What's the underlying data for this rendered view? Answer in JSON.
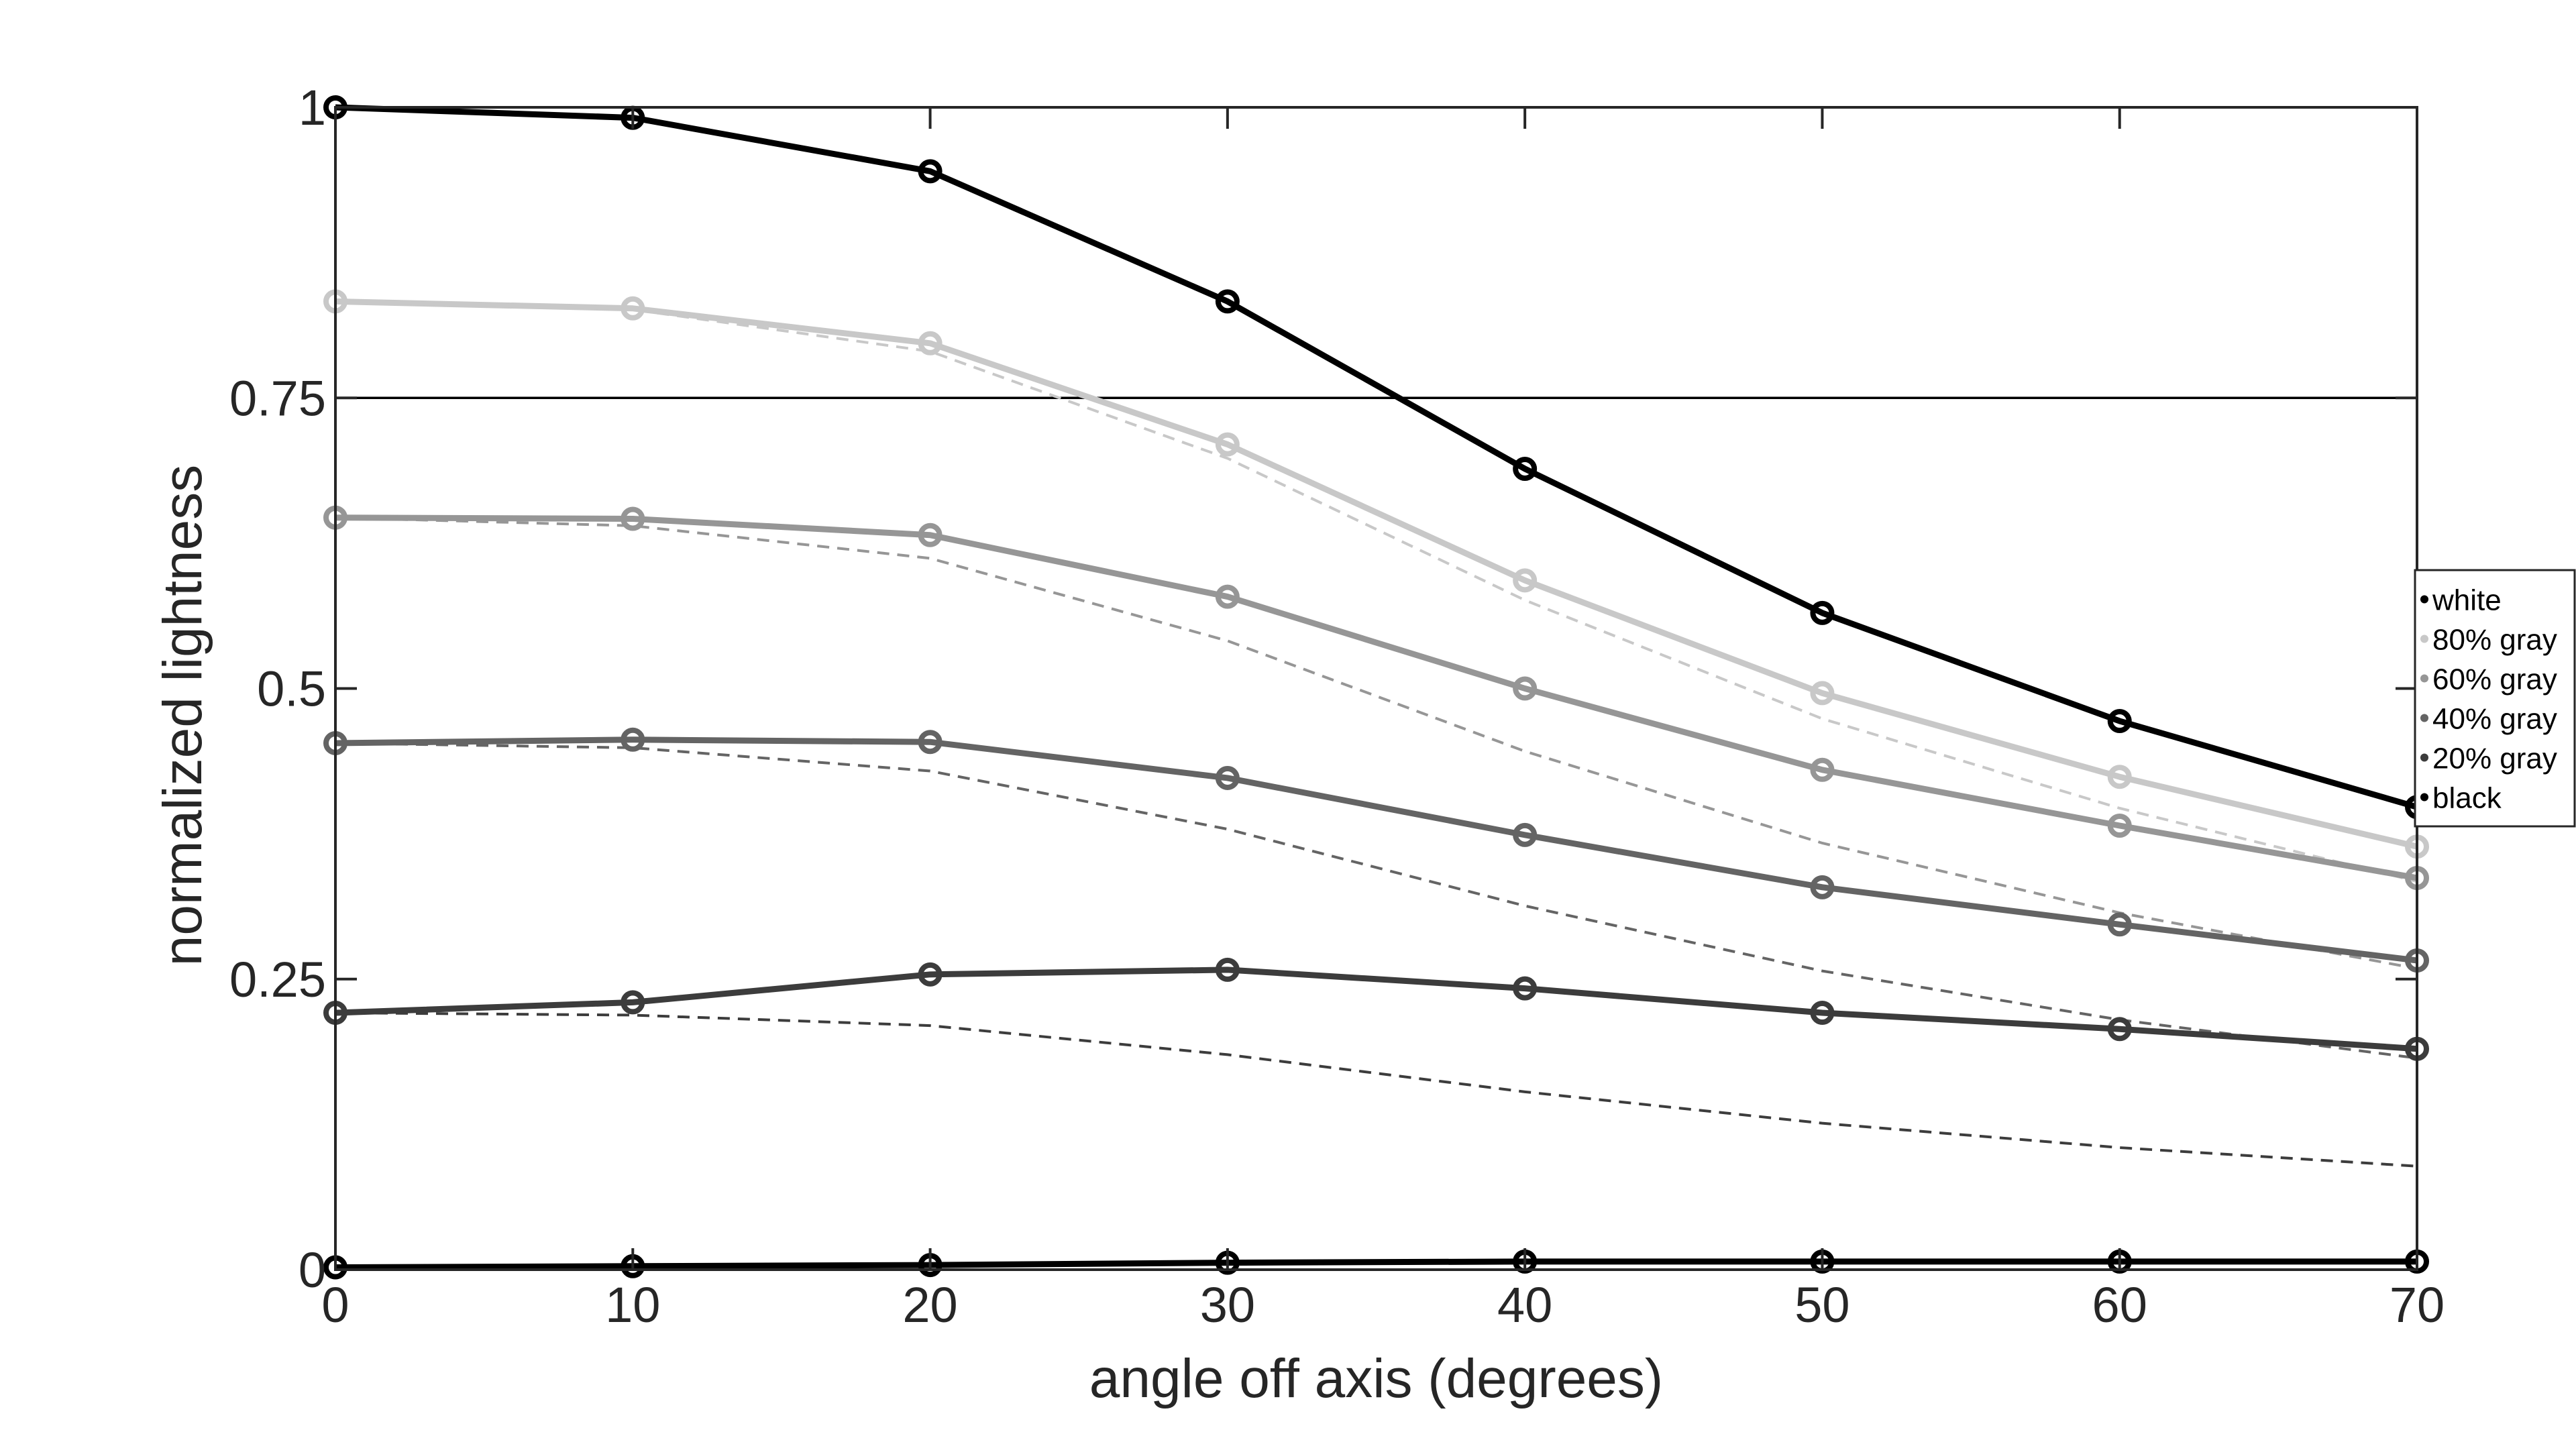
{
  "chart_data": {
    "type": "line",
    "xlabel": "angle off axis (degrees)",
    "ylabel": "normalized lightness",
    "x": [
      0,
      10,
      20,
      30,
      40,
      50,
      60,
      70
    ],
    "xlim": [
      0,
      70
    ],
    "ylim": [
      0,
      1
    ],
    "xticks": [
      {
        "value": 0,
        "label": "0"
      },
      {
        "value": 10,
        "label": "10"
      },
      {
        "value": 20,
        "label": "20"
      },
      {
        "value": 30,
        "label": "30"
      },
      {
        "value": 40,
        "label": "40"
      },
      {
        "value": 50,
        "label": "50"
      },
      {
        "value": 60,
        "label": "60"
      },
      {
        "value": 70,
        "label": "70"
      }
    ],
    "yticks": [
      {
        "value": 0,
        "label": "0"
      },
      {
        "value": 0.25,
        "label": "0.25"
      },
      {
        "value": 0.5,
        "label": "0.5"
      },
      {
        "value": 0.75,
        "label": "0.75"
      },
      {
        "value": 1,
        "label": "1"
      }
    ],
    "grid": false,
    "reference_line": {
      "y": 0.75,
      "color": "#000000"
    },
    "legend_position": "right",
    "series": [
      {
        "name": "white",
        "color": "#000000",
        "values": [
          1.0,
          0.991,
          0.945,
          0.833,
          0.689,
          0.565,
          0.472,
          0.398
        ]
      },
      {
        "name": "80% gray",
        "color": "#c8c8c8",
        "values": [
          0.833,
          0.827,
          0.797,
          0.71,
          0.593,
          0.496,
          0.424,
          0.364
        ]
      },
      {
        "name": "60% gray",
        "color": "#969696",
        "values": [
          0.647,
          0.646,
          0.632,
          0.579,
          0.5,
          0.43,
          0.382,
          0.337
        ]
      },
      {
        "name": "40% gray",
        "color": "#646464",
        "values": [
          0.453,
          0.456,
          0.454,
          0.423,
          0.374,
          0.329,
          0.297,
          0.266
        ]
      },
      {
        "name": "20% gray",
        "color": "#3c3c3c",
        "values": [
          0.221,
          0.23,
          0.254,
          0.258,
          0.242,
          0.221,
          0.207,
          0.19
        ]
      },
      {
        "name": "black",
        "color": "#000000",
        "values": [
          0.002,
          0.003,
          0.004,
          0.006,
          0.007,
          0.007,
          0.007,
          0.007
        ]
      }
    ],
    "dashed_series": [
      {
        "color": "#c8c8c8",
        "values": [
          0.833,
          0.826,
          0.79,
          0.698,
          0.576,
          0.474,
          0.397,
          0.334
        ]
      },
      {
        "color": "#969696",
        "values": [
          0.647,
          0.64,
          0.612,
          0.541,
          0.446,
          0.367,
          0.307,
          0.259
        ]
      },
      {
        "color": "#646464",
        "values": [
          0.453,
          0.449,
          0.429,
          0.379,
          0.313,
          0.257,
          0.215,
          0.182
        ]
      },
      {
        "color": "#3c3c3c",
        "values": [
          0.221,
          0.219,
          0.21,
          0.185,
          0.153,
          0.126,
          0.105,
          0.089
        ]
      }
    ]
  }
}
